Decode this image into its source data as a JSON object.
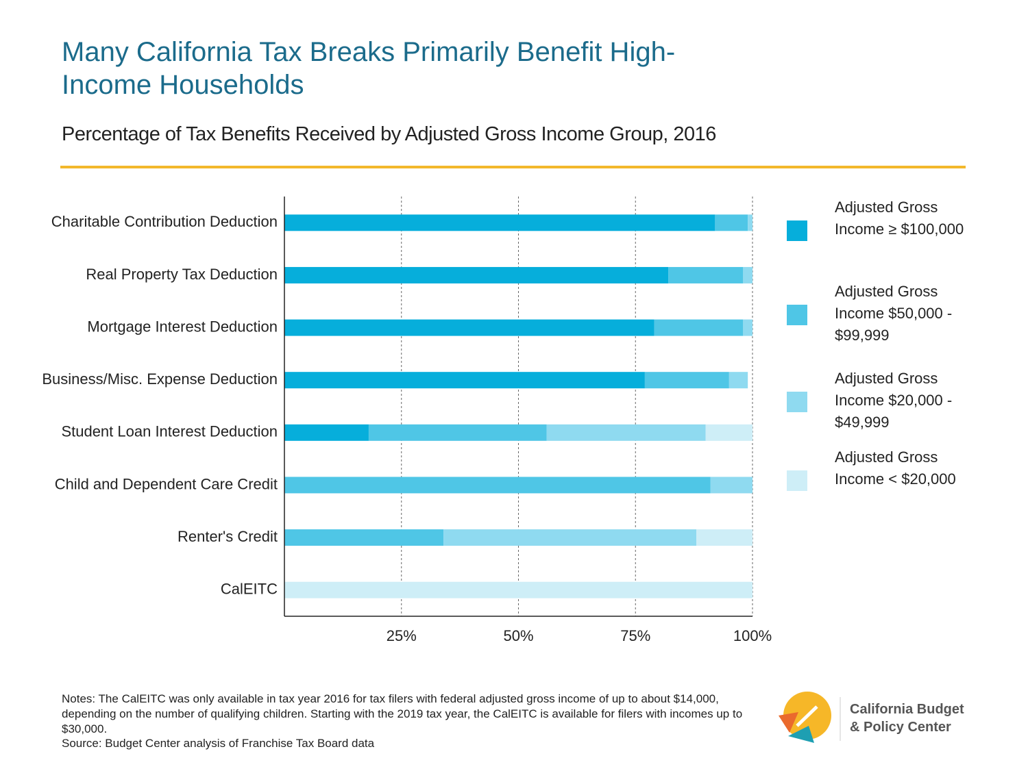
{
  "chart_data": {
    "type": "bar",
    "orientation": "horizontal",
    "stacked": true,
    "title": "Many California Tax Breaks Primarily Benefit High-Income Households",
    "subtitle": "Percentage of Tax Benefits Received by Adjusted Gross Income Group, 2016",
    "categories": [
      "Charitable Contribution Deduction",
      "Real Property Tax Deduction",
      "Mortgage Interest Deduction",
      "Business/Misc. Expense Deduction",
      "Student Loan Interest Deduction",
      "Child and Dependent Care Credit",
      "Renter's Credit",
      "CalEITC"
    ],
    "series": [
      {
        "name": "Adjusted Gross Income ≥ $100,000",
        "color": "#06aedb",
        "values": [
          92,
          82,
          79,
          77,
          18,
          0,
          0,
          0
        ]
      },
      {
        "name": "Adjusted Gross Income $50,000 - $99,999",
        "color": "#4fc6e6",
        "values": [
          7,
          16,
          19,
          18,
          38,
          91,
          34,
          0
        ]
      },
      {
        "name": "Adjusted Gross Income $20,000 - $49,999",
        "color": "#8fdaf0",
        "values": [
          1,
          2,
          2,
          4,
          34,
          9,
          54,
          0
        ]
      },
      {
        "name": "Adjusted Gross Income < $20,000",
        "color": "#ceeef7",
        "values": [
          0,
          0,
          0,
          0,
          10,
          0,
          12,
          100
        ]
      }
    ],
    "xlim": [
      0,
      100
    ],
    "xticks": [
      {
        "value": 25,
        "label": "25%"
      },
      {
        "value": 50,
        "label": "50%"
      },
      {
        "value": 75,
        "label": "75%"
      },
      {
        "value": 100,
        "label": "100%"
      }
    ],
    "grid": true,
    "legend": "right"
  },
  "notes": "Notes: The CalEITC was only available in tax year 2016 for tax filers with federal adjusted gross income of up to about $14,000, depending on the number of qualifying children. Starting with the 2019 tax year, the CalEITC is available for filers with incomes up to $30,000.",
  "source": "Source: Budget Center analysis of Franchise Tax Board data",
  "logo": [
    "California Budget",
    "& Policy Center"
  ]
}
